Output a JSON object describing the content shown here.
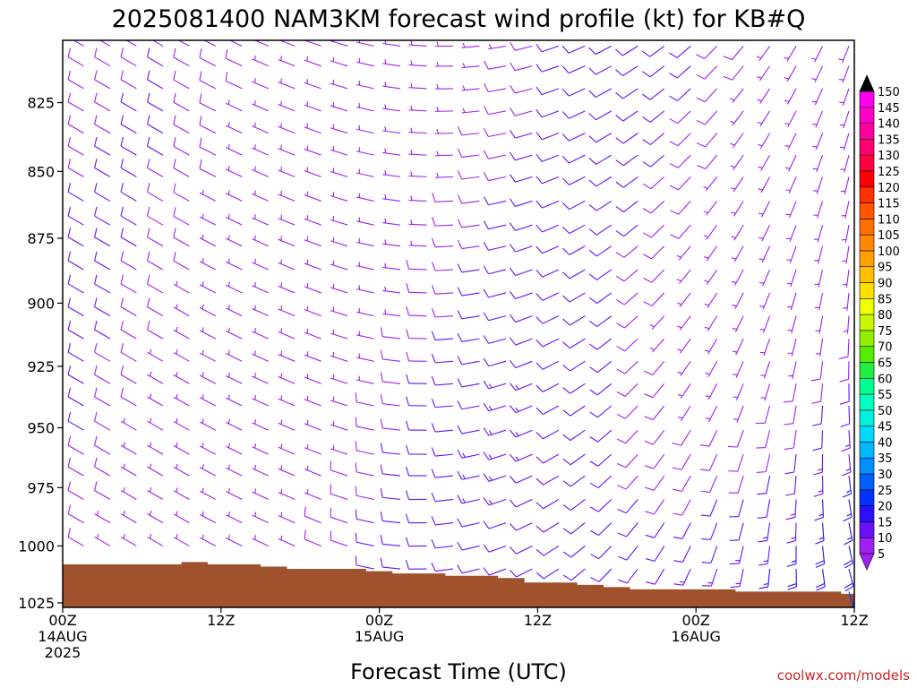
{
  "title": "2025081400 NAM3KM forecast wind profile (kt) for KB#Q",
  "credit": "coolwx.com/models",
  "chart_data": {
    "type": "wind-barb-time-height",
    "title": "2025081400 NAM3KM forecast wind profile (kt) for KB#Q",
    "xlabel": "Forecast Time (UTC)",
    "ylabel": "",
    "x_ticks": [
      {
        "hour": 0,
        "lines": [
          "00Z",
          "14AUG",
          "2025"
        ]
      },
      {
        "hour": 12,
        "lines": [
          "12Z"
        ]
      },
      {
        "hour": 24,
        "lines": [
          "00Z",
          "15AUG"
        ]
      },
      {
        "hour": 36,
        "lines": [
          "12Z"
        ]
      },
      {
        "hour": 48,
        "lines": [
          "00Z",
          "16AUG"
        ]
      },
      {
        "hour": 60,
        "lines": [
          "12Z"
        ]
      }
    ],
    "xlim": [
      0,
      60
    ],
    "y_ticks": [
      825,
      850,
      875,
      900,
      925,
      950,
      975,
      1000,
      1025
    ],
    "ylim": [
      1027,
      803
    ],
    "y_scale": "log-pressure",
    "levels_hpa": [
      805,
      812,
      820,
      828,
      836,
      844,
      852,
      861,
      870,
      878,
      887,
      896,
      905,
      914,
      923,
      932,
      941,
      951,
      961,
      970,
      980,
      990,
      1000,
      1010,
      1020
    ],
    "time_step_hours": 2,
    "time_hours": [
      0,
      2,
      4,
      6,
      8,
      10,
      12,
      14,
      16,
      18,
      20,
      22,
      24,
      26,
      28,
      30,
      32,
      34,
      36,
      38,
      40,
      42,
      44,
      46,
      48,
      50,
      52,
      54,
      56,
      58,
      60
    ],
    "terrain_surface_pressure_hpa": [
      1008,
      1008,
      1008,
      1008,
      1008,
      1007,
      1008,
      1008,
      1009,
      1010,
      1010,
      1010,
      1011,
      1012,
      1012,
      1013,
      1013,
      1014,
      1016,
      1016,
      1017,
      1018,
      1019,
      1019,
      1019,
      1019,
      1020,
      1020,
      1020,
      1020,
      1021
    ],
    "wind_description": "Light northwesterly flow (about 5-15 kt) in the lowest levels through day 1, becoming westerly; from day 2 onward winds veer to southwesterly/southerly aloft and southerly to south-southeasterly near the surface, strengthening to about 15-30 kt below 950 hPa during 15AUG evening and 16AUG.",
    "colorbar": {
      "label": "kt",
      "values": [
        5,
        10,
        15,
        20,
        25,
        30,
        35,
        40,
        45,
        50,
        55,
        60,
        65,
        70,
        75,
        80,
        85,
        90,
        95,
        100,
        105,
        110,
        115,
        120,
        125,
        130,
        135,
        140,
        145,
        150
      ],
      "colors": [
        "#a020f0",
        "#6a10f8",
        "#2a10ff",
        "#0033ff",
        "#0060ff",
        "#0090ff",
        "#00b8ff",
        "#00d8ff",
        "#00f0e0",
        "#00ffc0",
        "#00ff90",
        "#20f040",
        "#55ee00",
        "#90f000",
        "#c8f800",
        "#f0ff00",
        "#ffe000",
        "#ffc000",
        "#ffa000",
        "#ff8800",
        "#ff7000",
        "#ff5500",
        "#ff3000",
        "#ff0000",
        "#ff0040",
        "#ff0070",
        "#ff00a0",
        "#ff00c8",
        "#ff00f0",
        "#ff30ff"
      ]
    }
  }
}
